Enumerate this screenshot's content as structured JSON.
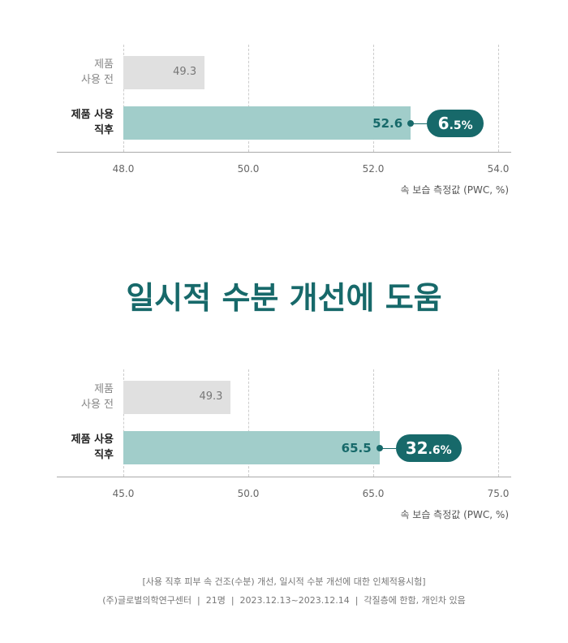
{
  "headline": "일시적 수분 개선에 도움",
  "footnotes": [
    "[사용 직후 피부 속 건조(수분) 개선, 일시적 수분 개선에 대한 인체적용시험]",
    "(주)글로벌의학연구센터  |  21명  |  2023.12.13~2023.12.14  |  각질층에 한함, 개인차 있음"
  ],
  "chart_data": [
    {
      "type": "bar",
      "orientation": "horizontal",
      "categories": [
        "제품\n사용 전",
        "제품 사용\n직후"
      ],
      "values": [
        49.3,
        52.6
      ],
      "colors": [
        "#e0e0e0",
        "#a1cdca"
      ],
      "change_label": "6.5%",
      "xlabel": "속 보습 측정값 (PWC, %)",
      "xlim": [
        48,
        54
      ],
      "xticks": [
        {
          "value": 48,
          "label": "48.0"
        },
        {
          "value": 50,
          "label": "50.0"
        },
        {
          "value": 52,
          "label": "52.0"
        },
        {
          "value": 54,
          "label": "54.0"
        }
      ],
      "grid": true
    },
    {
      "type": "bar",
      "orientation": "horizontal",
      "categories": [
        "제품\n사용 전",
        "제품 사용\n직후"
      ],
      "values": [
        49.3,
        65.5
      ],
      "colors": [
        "#e0e0e0",
        "#a1cdca"
      ],
      "change_label": "32.6%",
      "xlabel": "속 보습 측정값 (PWC, %)",
      "xlim": [
        45,
        75
      ],
      "xticks": [
        {
          "value": 45,
          "label": "45.0"
        },
        {
          "value": 50,
          "label": "50.0"
        },
        {
          "value": 65,
          "label": "65.0"
        },
        {
          "value": 75,
          "label": "75.0"
        }
      ],
      "grid": true
    }
  ]
}
